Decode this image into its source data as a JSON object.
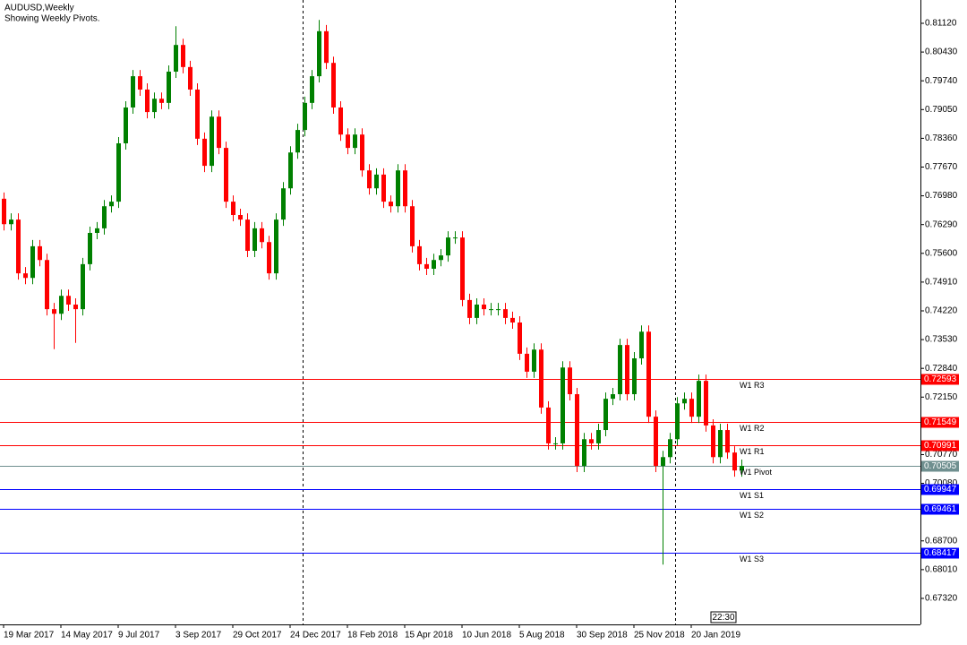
{
  "chart_data": {
    "type": "candlestick",
    "title": "AUDUSD,Weekly",
    "subtitle": "Showing Weekly Pivots.",
    "timer": "22:30",
    "colors": {
      "up": "#008000",
      "down": "#ff0000"
    },
    "ylim": [
      0.66696,
      0.81679
    ],
    "yticks": [
      {
        "value": 0.8112,
        "label": "0.81120"
      },
      {
        "value": 0.8043,
        "label": "0.80430"
      },
      {
        "value": 0.7974,
        "label": "0.79740"
      },
      {
        "value": 0.7905,
        "label": "0.79050"
      },
      {
        "value": 0.7836,
        "label": "0.78360"
      },
      {
        "value": 0.7767,
        "label": "0.77670"
      },
      {
        "value": 0.7698,
        "label": "0.76980"
      },
      {
        "value": 0.7629,
        "label": "0.76290"
      },
      {
        "value": 0.756,
        "label": "0.75600"
      },
      {
        "value": 0.7491,
        "label": "0.74910"
      },
      {
        "value": 0.7422,
        "label": "0.74220"
      },
      {
        "value": 0.7353,
        "label": "0.73530"
      },
      {
        "value": 0.7284,
        "label": "0.72840"
      },
      {
        "value": 0.7215,
        "label": "0.72150"
      },
      {
        "value": 0.7077,
        "label": "0.70770"
      },
      {
        "value": 0.7008,
        "label": "0.70080"
      },
      {
        "value": 0.687,
        "label": "0.68700"
      },
      {
        "value": 0.6801,
        "label": "0.68010"
      },
      {
        "value": 0.6732,
        "label": "0.67320"
      }
    ],
    "categories": [
      "19 Mar 2017",
      null,
      null,
      null,
      null,
      null,
      null,
      null,
      "14 May 2017",
      null,
      null,
      null,
      null,
      null,
      null,
      null,
      "9 Jul 2017",
      null,
      null,
      null,
      null,
      null,
      null,
      null,
      "3 Sep 2017",
      null,
      null,
      null,
      null,
      null,
      null,
      null,
      "29 Oct 2017",
      null,
      null,
      null,
      null,
      null,
      null,
      null,
      "24 Dec 2017",
      null,
      null,
      null,
      null,
      null,
      null,
      null,
      "18 Feb 2018",
      null,
      null,
      null,
      null,
      null,
      null,
      null,
      "15 Apr 2018",
      null,
      null,
      null,
      null,
      null,
      null,
      null,
      "10 Jun 2018",
      null,
      null,
      null,
      null,
      null,
      null,
      null,
      "5 Aug 2018",
      null,
      null,
      null,
      null,
      null,
      null,
      null,
      "30 Sep 2018",
      null,
      null,
      null,
      null,
      null,
      null,
      null,
      "25 Nov 2018",
      null,
      null,
      null,
      null,
      null,
      null,
      null,
      "20 Jan 2019",
      null,
      null,
      null,
      null,
      null,
      null,
      null
    ],
    "open": [
      0.7691,
      0.763,
      0.7641,
      0.7512,
      0.7501,
      0.7577,
      0.7544,
      0.7426,
      0.7415,
      0.7458,
      0.7437,
      0.7426,
      0.7534,
      0.7609,
      0.762,
      0.7673,
      0.7684,
      0.7824,
      0.791,
      0.7985,
      0.7953,
      0.7899,
      0.7931,
      0.7921,
      0.7996,
      0.806,
      0.8007,
      0.7953,
      0.7835,
      0.777,
      0.7888,
      0.7813,
      0.7684,
      0.7652,
      0.7641,
      0.7566,
      0.762,
      0.7587,
      0.7512,
      0.7641,
      0.7716,
      0.7802,
      0.7856,
      0.7921,
      0.7985,
      0.8093,
      0.8017,
      0.791,
      0.7845,
      0.7813,
      0.7845,
      0.7759,
      0.7716,
      0.7749,
      0.7684,
      0.7673,
      0.7759,
      0.7673,
      0.7577,
      0.7534,
      0.7523,
      0.7544,
      0.7555,
      0.7598,
      0.7598,
      0.7448,
      0.7405,
      0.7437,
      0.7426,
      0.7426,
      0.7426,
      0.7405,
      0.7394,
      0.7319,
      0.7276,
      0.7329,
      0.719,
      0.7104,
      0.7104,
      0.7286,
      0.7222,
      0.705,
      0.7114,
      0.7104,
      0.7136,
      0.7211,
      0.7222,
      0.734,
      0.7222,
      0.7308,
      0.7372,
      0.7168,
      0.705,
      0.7071,
      0.7114,
      0.72,
      0.7211,
      0.7168,
      0.7254,
      0.7147,
      0.7071,
      0.7136,
      0.7082,
      0.7039
    ],
    "high": [
      0.7706,
      0.7656,
      0.7656,
      0.7527,
      0.7592,
      0.7592,
      0.7559,
      0.7441,
      0.7473,
      0.7473,
      0.7452,
      0.7549,
      0.7624,
      0.7635,
      0.7688,
      0.7699,
      0.7839,
      0.7925,
      0.8,
      0.8,
      0.7968,
      0.7946,
      0.7946,
      0.8011,
      0.8105,
      0.8075,
      0.8022,
      0.7968,
      0.785,
      0.7903,
      0.7903,
      0.7828,
      0.7699,
      0.7667,
      0.7656,
      0.7635,
      0.7635,
      0.7602,
      0.7656,
      0.7731,
      0.7817,
      0.7871,
      0.7936,
      0.8,
      0.812,
      0.8108,
      0.8032,
      0.7925,
      0.786,
      0.786,
      0.786,
      0.7774,
      0.7764,
      0.7764,
      0.7699,
      0.7774,
      0.7774,
      0.7688,
      0.7592,
      0.7549,
      0.7559,
      0.757,
      0.7613,
      0.7613,
      0.7613,
      0.7463,
      0.7452,
      0.7452,
      0.7441,
      0.7441,
      0.7441,
      0.742,
      0.7409,
      0.7334,
      0.7344,
      0.7344,
      0.7205,
      0.7119,
      0.7301,
      0.7301,
      0.7237,
      0.7129,
      0.7129,
      0.7151,
      0.7226,
      0.7237,
      0.7355,
      0.7355,
      0.7323,
      0.7387,
      0.7387,
      0.7183,
      0.7086,
      0.7129,
      0.7215,
      0.7226,
      0.7226,
      0.7269,
      0.7269,
      0.7162,
      0.7151,
      0.7151,
      0.7097,
      0.7065
    ],
    "low": [
      0.7615,
      0.7615,
      0.7497,
      0.7486,
      0.7486,
      0.7529,
      0.7411,
      0.733,
      0.74,
      0.7422,
      0.7345,
      0.7411,
      0.7519,
      0.7594,
      0.7605,
      0.7658,
      0.7669,
      0.7809,
      0.7895,
      0.7938,
      0.7884,
      0.7884,
      0.7906,
      0.7906,
      0.7981,
      0.7992,
      0.7938,
      0.782,
      0.7755,
      0.7755,
      0.7798,
      0.7669,
      0.7637,
      0.7626,
      0.7551,
      0.7551,
      0.7572,
      0.7497,
      0.7497,
      0.7626,
      0.7701,
      0.7787,
      0.7841,
      0.7906,
      0.797,
      0.8002,
      0.7895,
      0.783,
      0.7798,
      0.7798,
      0.7744,
      0.7701,
      0.7701,
      0.7669,
      0.7658,
      0.7658,
      0.7658,
      0.7562,
      0.7519,
      0.7508,
      0.7508,
      0.7529,
      0.754,
      0.7583,
      0.7433,
      0.739,
      0.739,
      0.7411,
      0.7411,
      0.7411,
      0.739,
      0.7379,
      0.7304,
      0.7261,
      0.7261,
      0.7175,
      0.7089,
      0.7089,
      0.7089,
      0.7207,
      0.7035,
      0.7035,
      0.7089,
      0.7089,
      0.7121,
      0.7196,
      0.7207,
      0.7207,
      0.7207,
      0.7293,
      0.7153,
      0.7035,
      0.6813,
      0.7056,
      0.7099,
      0.7185,
      0.7153,
      0.7153,
      0.7132,
      0.7056,
      0.7056,
      0.7067,
      0.7024,
      0.7024
    ],
    "close": [
      0.763,
      0.7641,
      0.7512,
      0.7501,
      0.7577,
      0.7544,
      0.7426,
      0.7415,
      0.7458,
      0.7437,
      0.7426,
      0.7534,
      0.7609,
      0.762,
      0.7673,
      0.7684,
      0.7824,
      0.791,
      0.7985,
      0.7953,
      0.7899,
      0.7931,
      0.7921,
      0.7996,
      0.806,
      0.8007,
      0.7953,
      0.7835,
      0.777,
      0.7888,
      0.7813,
      0.7684,
      0.7652,
      0.7641,
      0.7566,
      0.762,
      0.7587,
      0.7512,
      0.7641,
      0.7716,
      0.7802,
      0.7856,
      0.7921,
      0.7985,
      0.8093,
      0.8017,
      0.791,
      0.7845,
      0.7813,
      0.7845,
      0.7759,
      0.7716,
      0.7749,
      0.7684,
      0.7673,
      0.7759,
      0.7673,
      0.7577,
      0.7534,
      0.7523,
      0.7544,
      0.7555,
      0.7598,
      0.7598,
      0.7448,
      0.7405,
      0.7437,
      0.7426,
      0.7426,
      0.7426,
      0.7405,
      0.7394,
      0.7319,
      0.7276,
      0.7329,
      0.719,
      0.7104,
      0.7104,
      0.7286,
      0.7222,
      0.705,
      0.7114,
      0.7104,
      0.7136,
      0.7211,
      0.7222,
      0.734,
      0.7222,
      0.7308,
      0.7372,
      0.7168,
      0.705,
      0.7071,
      0.7114,
      0.72,
      0.7211,
      0.7168,
      0.7254,
      0.7147,
      0.7071,
      0.7136,
      0.7082,
      0.7039,
      0.705
    ],
    "pivots": [
      {
        "name": "W1 R3",
        "value": 0.72593,
        "color": "#ff0000"
      },
      {
        "name": "W1 R2",
        "value": 0.71549,
        "color": "#ff0000"
      },
      {
        "name": "W1 R1",
        "value": 0.70991,
        "color": "#ff0000"
      },
      {
        "name": "W1 Pivot",
        "value": 0.70505,
        "color": "#6f8f8f"
      },
      {
        "name": "W1 S1",
        "value": 0.69947,
        "color": "#0000ff"
      },
      {
        "name": "W1 S2",
        "value": 0.69461,
        "color": "#0000ff"
      },
      {
        "name": "W1 S3",
        "value": 0.68417,
        "color": "#0000ff"
      }
    ]
  }
}
